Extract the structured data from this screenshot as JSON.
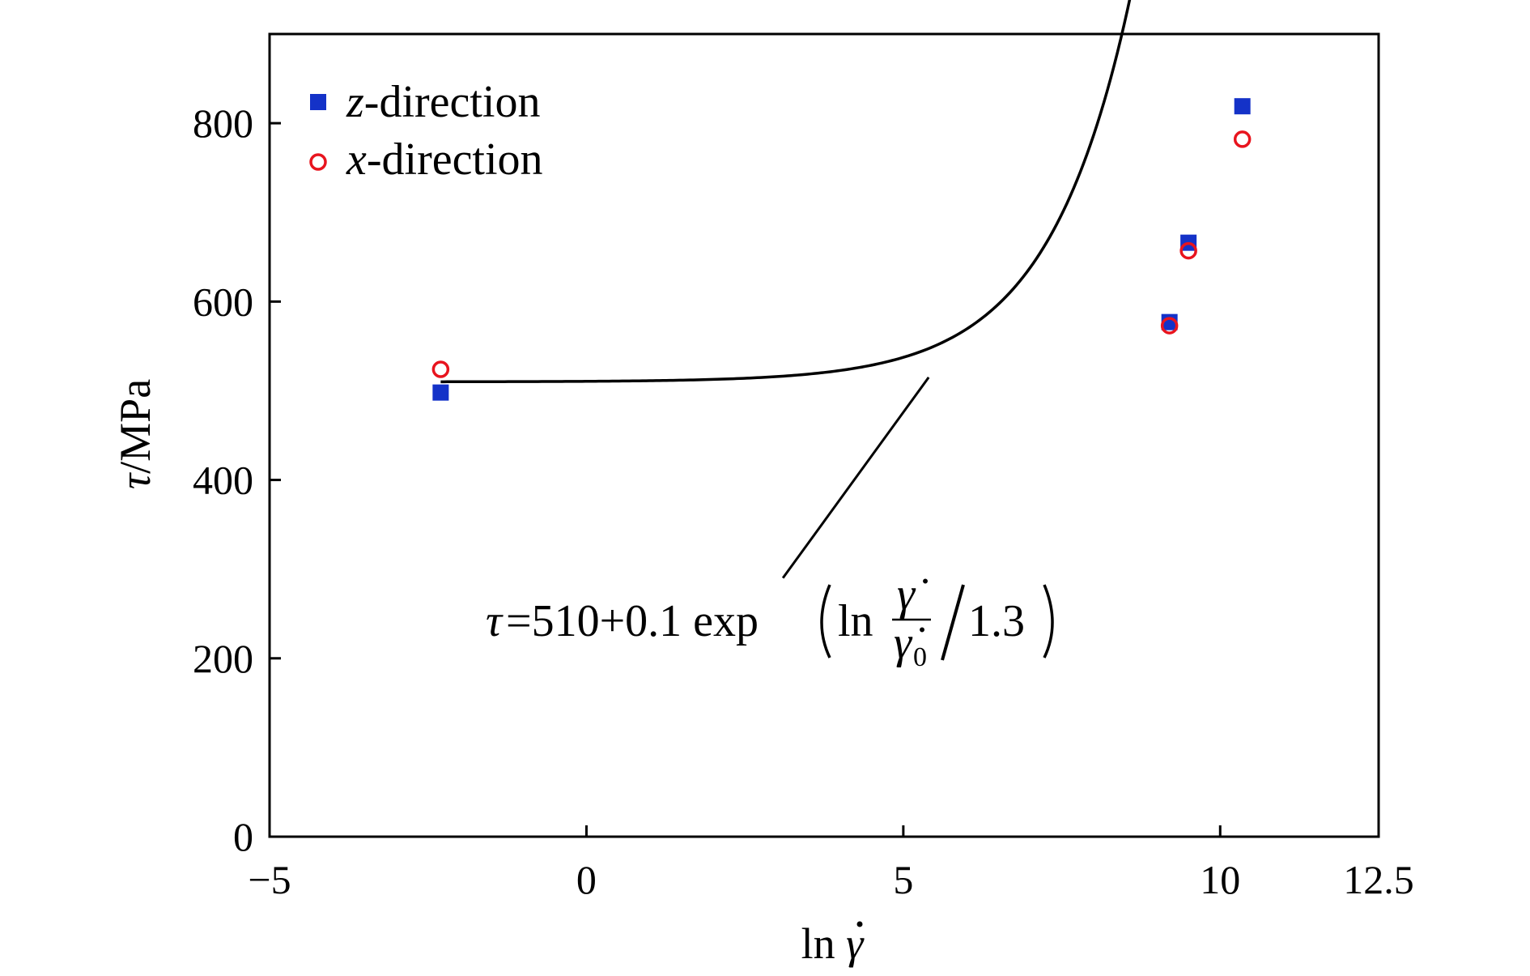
{
  "chart_data": {
    "type": "scatter",
    "xlabel": "ln γ̇",
    "ylabel": "τ/MPa",
    "xlim": [
      -5,
      12.5
    ],
    "ylim": [
      0,
      900
    ],
    "x_ticks": [
      -5,
      0,
      5,
      10,
      12.5
    ],
    "x_tick_labels": [
      "−5",
      "0",
      "5",
      "10",
      "12.5"
    ],
    "y_ticks": [
      0,
      200,
      400,
      600,
      800
    ],
    "y_tick_labels": [
      "0",
      "200",
      "400",
      "600",
      "800"
    ],
    "grid": false,
    "legend_position": "top-left",
    "series": [
      {
        "name": "z-direction",
        "name_var": "z",
        "name_rest": "-direction",
        "marker": "filled-square",
        "color": "#1432c8",
        "x": [
          -2.3,
          9.2,
          9.5,
          10.35
        ],
        "y": [
          498,
          577,
          666,
          819
        ]
      },
      {
        "name": "x-direction",
        "name_var": "x",
        "name_rest": "-direction",
        "marker": "open-circle",
        "color": "#e8141e",
        "x": [
          -2.3,
          9.2,
          9.5,
          10.35
        ],
        "y": [
          524,
          573,
          657,
          782
        ]
      }
    ],
    "fit": {
      "type": "line",
      "color": "#000000",
      "base": 510,
      "coef": 0.1,
      "divisor": 1.3,
      "x0": -2.3,
      "x_range": [
        -2.3,
        10.45
      ]
    },
    "annotation": {
      "text": "τ=510+0.1 exp(ln γ̇/γ̇0 /1.3)",
      "prefix": "=510+0.1 exp",
      "tau": "τ",
      "ln": "ln",
      "numerator": "γ̇",
      "denominator": "γ̇",
      "subscript": "0",
      "suffix": "/1.3",
      "pointer_from": [
        3.1,
        290
      ],
      "pointer_to": [
        5.4,
        515
      ]
    }
  }
}
